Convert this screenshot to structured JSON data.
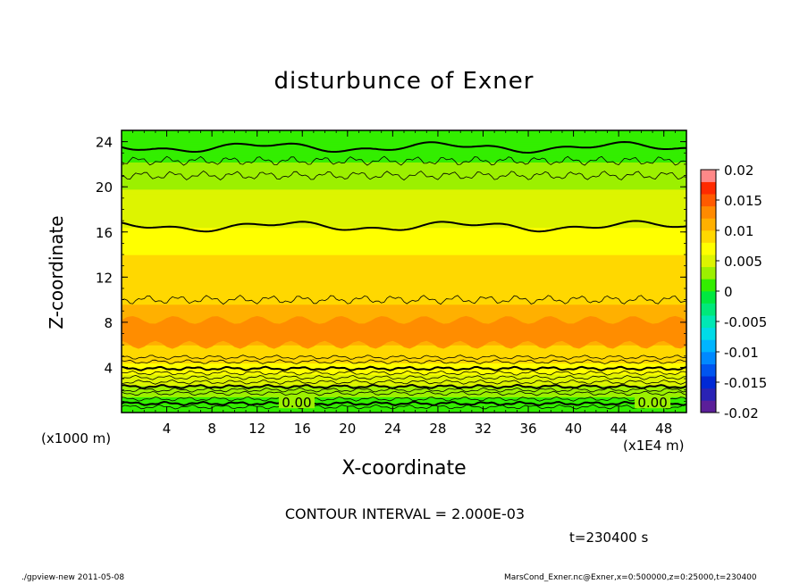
{
  "figure": {
    "title": "disturbunce of Exner",
    "contour_interval": "CONTOUR INTERVAL = 2.000E-03",
    "time_label": "t=230400 s",
    "footer_left": "./gpview-new   2011-05-08",
    "footer_right": "MarsCond_Exner.nc@Exner,x=0:500000,z=0:25000,t=230400"
  },
  "chart_data": {
    "type": "heatmap",
    "title": "disturbunce of Exner",
    "xlabel": "X-coordinate",
    "ylabel": "Z-coordinate",
    "x_unit_label": "(x1E4 m)",
    "y_unit_label": "(x1000 m)",
    "xlim": [
      0,
      50
    ],
    "ylim": [
      0,
      25
    ],
    "x_ticks": [
      "4",
      "8",
      "12",
      "16",
      "20",
      "24",
      "28",
      "32",
      "36",
      "40",
      "44",
      "48"
    ],
    "y_ticks": [
      "4",
      "8",
      "12",
      "16",
      "20",
      "24"
    ],
    "contour_labels": [
      {
        "text": "0.00",
        "x": 15.5,
        "y": 0.7
      },
      {
        "text": "0.00",
        "x": 47.0,
        "y": 0.7
      }
    ],
    "colorbar": {
      "ticks": [
        "0.02",
        "0.015",
        "0.01",
        "0.005",
        "0",
        "-0.005",
        "-0.01",
        "-0.015",
        "-0.02"
      ],
      "levels": [
        -0.02,
        -0.018,
        -0.016,
        -0.014,
        -0.012,
        -0.01,
        -0.008,
        -0.006,
        -0.004,
        -0.002,
        0,
        0.002,
        0.004,
        0.006,
        0.008,
        0.01,
        0.012,
        0.014,
        0.016,
        0.018,
        0.02
      ],
      "colors": [
        "#5b1f99",
        "#2a23b5",
        "#0029d6",
        "#0055f0",
        "#0089ff",
        "#00b5ff",
        "#00dbe8",
        "#00e8b4",
        "#00e87a",
        "#00e840",
        "#33ee00",
        "#9cf000",
        "#ddf400",
        "#ffff00",
        "#ffd800",
        "#ffb000",
        "#ff8a00",
        "#ff5a00",
        "#ff2a00",
        "#ff8888"
      ]
    },
    "z_profile": [
      {
        "z": 0.0,
        "value": 0.0
      },
      {
        "z": 0.5,
        "value": 0.0
      },
      {
        "z": 1.5,
        "value": 0.002
      },
      {
        "z": 2.5,
        "value": 0.004
      },
      {
        "z": 3.5,
        "value": 0.006
      },
      {
        "z": 4.5,
        "value": 0.008
      },
      {
        "z": 6.5,
        "value": 0.0105
      },
      {
        "z": 7.5,
        "value": 0.011
      },
      {
        "z": 9.0,
        "value": 0.0105
      },
      {
        "z": 10.5,
        "value": 0.009
      },
      {
        "z": 14.0,
        "value": 0.008
      },
      {
        "z": 16.5,
        "value": 0.006
      },
      {
        "z": 18.5,
        "value": 0.005
      },
      {
        "z": 21.0,
        "value": 0.003
      },
      {
        "z": 23.5,
        "value": 0.001
      },
      {
        "z": 25.0,
        "value": 0.0
      }
    ],
    "thick_contours_z": [
      0.8,
      2.3,
      3.9,
      16.5,
      23.5
    ],
    "thin_contours_z": [
      0.5,
      1.2,
      1.7,
      2.0,
      2.7,
      3.1,
      3.5,
      4.5,
      4.9,
      10.0,
      21.0,
      22.3
    ]
  }
}
